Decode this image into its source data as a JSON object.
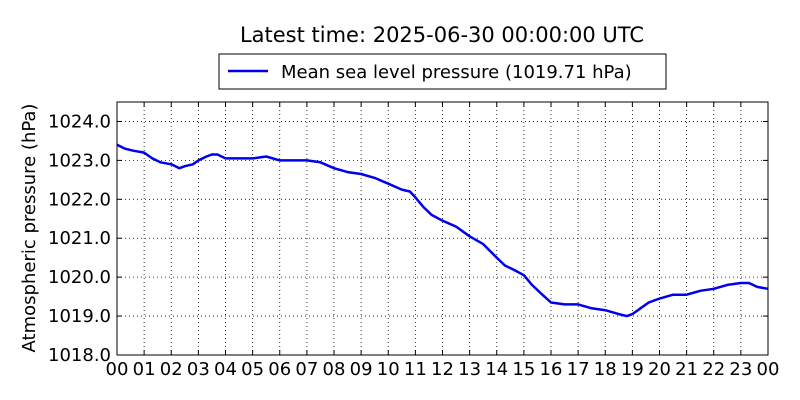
{
  "chart_data": {
    "type": "line",
    "title": "Latest time: 2025-06-30 00:00:00 UTC",
    "xlabel": "",
    "ylabel": "Atmospheric pressure (hPa)",
    "x_tick_labels": [
      "00",
      "01",
      "02",
      "03",
      "04",
      "05",
      "06",
      "07",
      "08",
      "09",
      "10",
      "11",
      "12",
      "13",
      "14",
      "15",
      "16",
      "17",
      "18",
      "19",
      "20",
      "21",
      "22",
      "23",
      "00"
    ],
    "y_ticks": [
      1018.0,
      1019.0,
      1020.0,
      1021.0,
      1022.0,
      1023.0,
      1024.0
    ],
    "y_tick_labels": [
      "1018.0",
      "1019.0",
      "1020.0",
      "1021.0",
      "1022.0",
      "1023.0",
      "1024.0"
    ],
    "xlim": [
      0,
      24
    ],
    "ylim": [
      1018.0,
      1024.5
    ],
    "grid": true,
    "legend_position": "top-center",
    "series": [
      {
        "name": "Mean sea level pressure (1019.71 hPa)",
        "color": "#0000ee",
        "x": [
          0,
          0.3,
          0.6,
          1.0,
          1.3,
          1.6,
          2.0,
          2.3,
          2.5,
          2.8,
          3.0,
          3.3,
          3.5,
          3.7,
          4.0,
          4.5,
          5.0,
          5.5,
          6.0,
          6.5,
          7.0,
          7.5,
          8.0,
          8.5,
          9.0,
          9.5,
          10.0,
          10.5,
          10.8,
          11.0,
          11.3,
          11.6,
          12.0,
          12.5,
          13.0,
          13.5,
          14.0,
          14.3,
          14.6,
          15.0,
          15.3,
          15.6,
          16.0,
          16.5,
          17.0,
          17.5,
          18.0,
          18.5,
          18.8,
          19.0,
          19.3,
          19.6,
          20.0,
          20.5,
          21.0,
          21.5,
          22.0,
          22.5,
          23.0,
          23.3,
          23.6,
          24.0
        ],
        "values": [
          1023.4,
          1023.3,
          1023.25,
          1023.2,
          1023.05,
          1022.95,
          1022.9,
          1022.8,
          1022.85,
          1022.9,
          1023.0,
          1023.1,
          1023.15,
          1023.15,
          1023.05,
          1023.05,
          1023.05,
          1023.1,
          1023.0,
          1023.0,
          1023.0,
          1022.95,
          1022.8,
          1022.7,
          1022.65,
          1022.55,
          1022.4,
          1022.25,
          1022.2,
          1022.05,
          1021.8,
          1021.6,
          1021.45,
          1021.3,
          1021.05,
          1020.85,
          1020.5,
          1020.3,
          1020.2,
          1020.05,
          1019.8,
          1019.6,
          1019.35,
          1019.3,
          1019.3,
          1019.2,
          1019.15,
          1019.05,
          1019.0,
          1019.05,
          1019.2,
          1019.35,
          1019.45,
          1019.55,
          1019.55,
          1019.65,
          1019.7,
          1019.8,
          1019.85,
          1019.85,
          1019.75,
          1019.7
        ]
      }
    ]
  }
}
